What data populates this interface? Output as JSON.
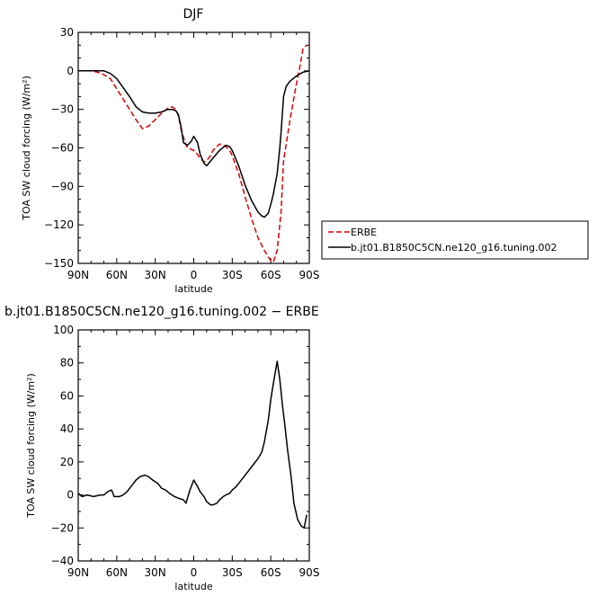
{
  "chart_data": [
    {
      "type": "line",
      "title": "DJF",
      "xlabel": "latitude",
      "ylabel": "TOA SW cloud forcing (W/m²)",
      "xlim": [
        -90,
        90
      ],
      "ylim": [
        -150,
        30
      ],
      "xticks": [
        -90,
        -60,
        -30,
        0,
        30,
        60,
        90
      ],
      "xtick_labels": [
        "90N",
        "60N",
        "30N",
        "0",
        "30S",
        "60S",
        "90S"
      ],
      "yticks": [
        -150,
        -120,
        -90,
        -60,
        -30,
        0,
        30
      ],
      "ytick_labels": [
        "−150",
        "−120",
        "−90",
        "−60",
        "−30",
        "0",
        "30"
      ],
      "grid": false,
      "legend_position": "right",
      "series": [
        {
          "name": "ERBE",
          "color": "#dd0000",
          "dash": "dashed",
          "x": [
            -90,
            -85,
            -80,
            -75,
            -70,
            -65,
            -60,
            -55,
            -50,
            -45,
            -40,
            -35,
            -30,
            -25,
            -20,
            -17,
            -14,
            -12,
            -10,
            -7,
            -5,
            -2,
            0,
            2,
            5,
            8,
            10,
            13,
            15,
            20,
            23,
            25,
            28,
            30,
            35,
            40,
            45,
            50,
            55,
            60,
            62,
            65,
            68,
            70,
            75,
            80,
            83,
            85,
            88
          ],
          "y": [
            0,
            0,
            0,
            -1,
            -3,
            -6,
            -14,
            -22,
            -30,
            -38,
            -45,
            -43,
            -38,
            -33,
            -29,
            -28,
            -30,
            -35,
            -45,
            -55,
            -60,
            -61,
            -62,
            -64,
            -68,
            -71,
            -70,
            -66,
            -62,
            -57,
            -58,
            -59,
            -62,
            -66,
            -80,
            -98,
            -115,
            -130,
            -140,
            -148,
            -149,
            -140,
            -110,
            -70,
            -38,
            -10,
            5,
            17,
            20
          ]
        },
        {
          "name": "b.jt01.B1850C5CN.ne120_g16.tuning.002",
          "color": "#000000",
          "dash": "solid",
          "x": [
            -90,
            -85,
            -80,
            -75,
            -70,
            -65,
            -60,
            -55,
            -50,
            -45,
            -40,
            -35,
            -30,
            -25,
            -20,
            -17,
            -14,
            -12,
            -10,
            -8,
            -5,
            -2,
            0,
            3,
            5,
            8,
            10,
            15,
            20,
            25,
            28,
            30,
            35,
            40,
            45,
            50,
            53,
            55,
            58,
            60,
            62,
            65,
            67,
            68,
            70,
            72,
            75,
            80,
            85,
            90
          ],
          "y": [
            0,
            0,
            0,
            0,
            0,
            -2,
            -6,
            -13,
            -20,
            -28,
            -32,
            -33,
            -33,
            -32,
            -30,
            -30,
            -31,
            -34,
            -43,
            -56,
            -58,
            -55,
            -51,
            -56,
            -65,
            -72,
            -74,
            -68,
            -62,
            -58,
            -59,
            -62,
            -74,
            -89,
            -101,
            -110,
            -113,
            -114,
            -111,
            -104,
            -96,
            -80,
            -60,
            -48,
            -20,
            -12,
            -8,
            -4,
            -1,
            0
          ]
        }
      ]
    },
    {
      "type": "line",
      "title": "b.jt01.B1850C5CN.ne120_g16.tuning.002 − ERBE",
      "xlabel": "latitude",
      "ylabel": "TOA SW cloud forcing (W/m²)",
      "xlim": [
        -90,
        90
      ],
      "ylim": [
        -40,
        100
      ],
      "xticks": [
        -90,
        -60,
        -30,
        0,
        30,
        60,
        90
      ],
      "xtick_labels": [
        "90N",
        "60N",
        "30N",
        "0",
        "30S",
        "60S",
        "90S"
      ],
      "yticks": [
        -40,
        -20,
        0,
        20,
        40,
        60,
        80,
        100
      ],
      "ytick_labels": [
        "−40",
        "−20",
        "0",
        "20",
        "40",
        "60",
        "80",
        "100"
      ],
      "grid": false,
      "series": [
        {
          "name": "",
          "color": "#000000",
          "dash": "solid",
          "x": [
            -90,
            -87,
            -83,
            -78,
            -73,
            -70,
            -67,
            -64,
            -62,
            -58,
            -55,
            -52,
            -48,
            -45,
            -42,
            -38,
            -35,
            -32,
            -28,
            -25,
            -22,
            -19,
            -15,
            -12,
            -8,
            -6,
            -3,
            0,
            3,
            5,
            8,
            10,
            13,
            15,
            18,
            20,
            23,
            25,
            28,
            30,
            33,
            35,
            38,
            42,
            46,
            50,
            53,
            55,
            58,
            60,
            63,
            65,
            67,
            69,
            71,
            73,
            76,
            78,
            81,
            84,
            86,
            88
          ],
          "y": [
            1,
            -1,
            0,
            -1,
            0,
            0,
            2,
            3,
            -1,
            -1,
            0,
            2,
            6,
            9,
            11,
            12,
            11,
            9,
            7,
            4,
            3,
            1,
            -1,
            -2,
            -3,
            -5,
            3,
            9,
            5,
            2,
            -1,
            -4,
            -6,
            -6,
            -5,
            -3,
            -1,
            0,
            1,
            3,
            5,
            7,
            10,
            14,
            18,
            22,
            26,
            32,
            45,
            58,
            72,
            81,
            70,
            55,
            42,
            28,
            10,
            -5,
            -15,
            -19,
            -20,
            -12
          ]
        }
      ]
    }
  ]
}
